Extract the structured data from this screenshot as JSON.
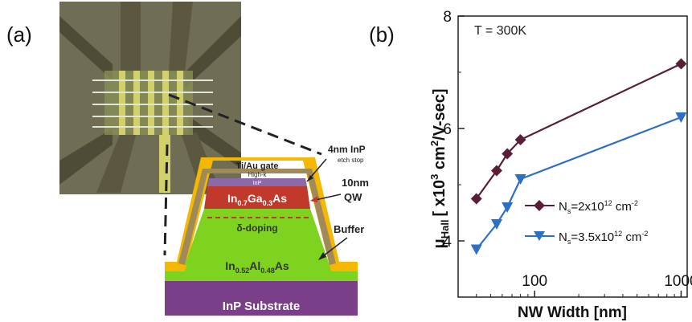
{
  "panel_a": {
    "label": "(a)",
    "layers": {
      "gate": "Ti/Au gate",
      "highk": "High-k",
      "inp_cap": "InP",
      "qw_main": "In",
      "qw_sub1": "0.7",
      "qw_mid": "Ga",
      "qw_sub2": "0.3",
      "qw_end": "As",
      "doping": "δ-doping",
      "buffer_main": "In",
      "buffer_sub1": "0.52",
      "buffer_mid": "Al",
      "buffer_sub2": "0.48",
      "buffer_end": "As",
      "substrate": "InP Substrate"
    },
    "annotations": {
      "inp_etch_line1": "4nm InP",
      "inp_etch_line2": "etch stop",
      "qw_line1": "10nm",
      "qw_line2": "QW",
      "buffer": "Buffer"
    },
    "colors": {
      "gate": "#f5b800",
      "highk": "#a08a5a",
      "inp_cap": "#8a6aa8",
      "qw": "#c0392b",
      "buffer": "#7ed321",
      "substrate": "#7b3f8a",
      "sem_background": "#7a6e60",
      "sem_gate": "#c9c24a"
    }
  },
  "panel_b": {
    "label": "(b)"
  },
  "chart_data": {
    "type": "line",
    "annotation": "T = 300K",
    "ylabel_main": "μ",
    "ylabel_sub": "Hall",
    "ylabel_units_pre": "[ x10",
    "ylabel_units_exp": "3",
    "ylabel_units_mid": " cm",
    "ylabel_units_exp2": "2",
    "ylabel_units_post": "/V-sec]",
    "xlabel": "NW Width [nm]",
    "xscale": "log",
    "xlim": [
      30,
      1100
    ],
    "ylim": [
      3.0,
      8.0
    ],
    "yticks": [
      4,
      6,
      8
    ],
    "ytick_labels": [
      "4",
      "6",
      "8"
    ],
    "xticks": [
      100,
      1000
    ],
    "xtick_labels": [
      "100",
      "1000"
    ],
    "series": [
      {
        "name_pre": "N",
        "name_sub": "s",
        "name_mid": "=2x10",
        "name_exp": "12",
        "name_unit": " cm",
        "name_unit_exp": "-2",
        "color": "#5a1e3a",
        "marker": "diamond",
        "x": [
          40,
          55,
          65,
          80,
          1000
        ],
        "y": [
          4.75,
          5.25,
          5.55,
          5.8,
          7.15
        ]
      },
      {
        "name_pre": "N",
        "name_sub": "s",
        "name_mid": "=3.5x10",
        "name_exp": "12",
        "name_unit": " cm",
        "name_unit_exp": "-2",
        "color": "#2c6fc4",
        "marker": "triangle-down",
        "x": [
          40,
          55,
          65,
          80,
          1000
        ],
        "y": [
          3.85,
          4.3,
          4.6,
          5.1,
          6.2
        ]
      }
    ],
    "legend_position": "lower-right"
  }
}
